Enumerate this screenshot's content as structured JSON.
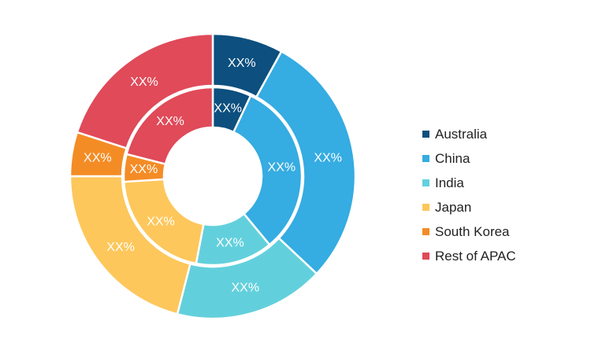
{
  "chart_data": {
    "type": "pie",
    "title": "",
    "style": "nested-donut",
    "legend_position": "right",
    "categories": [
      "Australia",
      "China",
      "India",
      "Japan",
      "South Korea",
      "Rest of APAC"
    ],
    "colors": [
      "#0d4f7e",
      "#35ace2",
      "#62d0dc",
      "#fdc75b",
      "#f48c26",
      "#e04a59"
    ],
    "series": [
      {
        "ring": "outer",
        "values": [
          8,
          29,
          17,
          21,
          5,
          20
        ],
        "labels": [
          "XX%",
          "XX%",
          "XX%",
          "XX%",
          "XX%",
          "XX%"
        ]
      },
      {
        "ring": "inner",
        "values": [
          7,
          32,
          14,
          21,
          5,
          21
        ],
        "labels": [
          "XX%",
          "XX%",
          "XX%",
          "XX%",
          "XX%",
          "XX%"
        ]
      }
    ]
  }
}
